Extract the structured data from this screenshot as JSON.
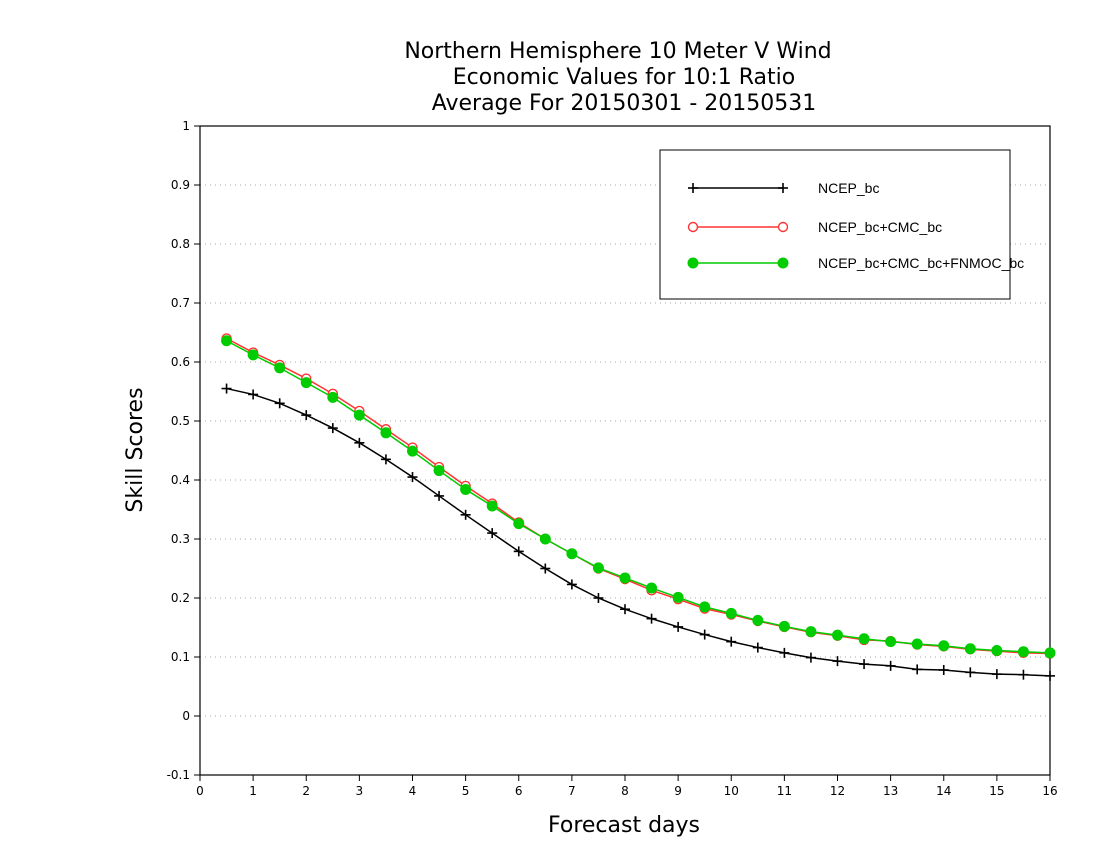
{
  "chart_data": {
    "type": "line",
    "title": [
      "Northern Hemisphere 10 Meter V Wind",
      "Economic Values for 10:1 Ratio",
      "Average For 20150301 - 20150531"
    ],
    "xlabel": "Forecast days",
    "ylabel": "Skill Scores",
    "xlim": [
      0,
      16
    ],
    "ylim": [
      -0.1,
      1
    ],
    "xticks": [
      0,
      1,
      2,
      3,
      4,
      5,
      6,
      7,
      8,
      9,
      10,
      11,
      12,
      13,
      14,
      15,
      16
    ],
    "yticks": [
      -0.1,
      0,
      0.1,
      0.2,
      0.3,
      0.4,
      0.5,
      0.6,
      0.7,
      0.8,
      0.9,
      1
    ],
    "ytick_labels": [
      "-0.1",
      "0",
      "0.1",
      "0.2",
      "0.3",
      "0.4",
      "0.5",
      "0.6",
      "0.7",
      "0.8",
      "0.9",
      "1"
    ],
    "grid": "dotted horizontal",
    "legend_position": "top-right",
    "x": [
      0.5,
      1,
      1.5,
      2,
      2.5,
      3,
      3.5,
      4,
      4.5,
      5,
      5.5,
      6,
      6.5,
      7,
      7.5,
      8,
      8.5,
      9,
      9.5,
      10,
      10.5,
      11,
      11.5,
      12,
      12.5,
      13,
      13.5,
      14,
      14.5,
      15,
      15.5,
      16
    ],
    "series": [
      {
        "name": "NCEP_bc",
        "color": "#000000",
        "marker": "plus",
        "values": [
          0.555,
          0.545,
          0.53,
          0.51,
          0.488,
          0.463,
          0.435,
          0.405,
          0.373,
          0.341,
          0.31,
          0.279,
          0.25,
          0.223,
          0.2,
          0.181,
          0.165,
          0.151,
          0.138,
          0.126,
          0.116,
          0.107,
          0.099,
          0.093,
          0.088,
          0.085,
          0.079,
          0.078,
          0.074,
          0.071,
          0.07,
          0.068
        ]
      },
      {
        "name": "NCEP_bc+CMC_bc",
        "color": "#ff3333",
        "marker": "open-circle",
        "values": [
          0.64,
          0.616,
          0.595,
          0.572,
          0.546,
          0.517,
          0.486,
          0.455,
          0.422,
          0.39,
          0.36,
          0.328,
          0.3,
          0.275,
          0.25,
          0.232,
          0.213,
          0.198,
          0.182,
          0.172,
          0.161,
          0.151,
          0.142,
          0.136,
          0.129,
          0.127,
          0.121,
          0.118,
          0.113,
          0.11,
          0.107,
          0.106
        ]
      },
      {
        "name": "NCEP_bc+CMC_bc+FNMOC_bc",
        "color": "#00cc00",
        "marker": "filled-circle",
        "values": [
          0.636,
          0.612,
          0.59,
          0.565,
          0.54,
          0.51,
          0.48,
          0.449,
          0.416,
          0.384,
          0.356,
          0.326,
          0.3,
          0.275,
          0.251,
          0.234,
          0.217,
          0.201,
          0.185,
          0.174,
          0.162,
          0.152,
          0.143,
          0.137,
          0.131,
          0.126,
          0.122,
          0.119,
          0.114,
          0.111,
          0.109,
          0.107
        ]
      }
    ]
  }
}
